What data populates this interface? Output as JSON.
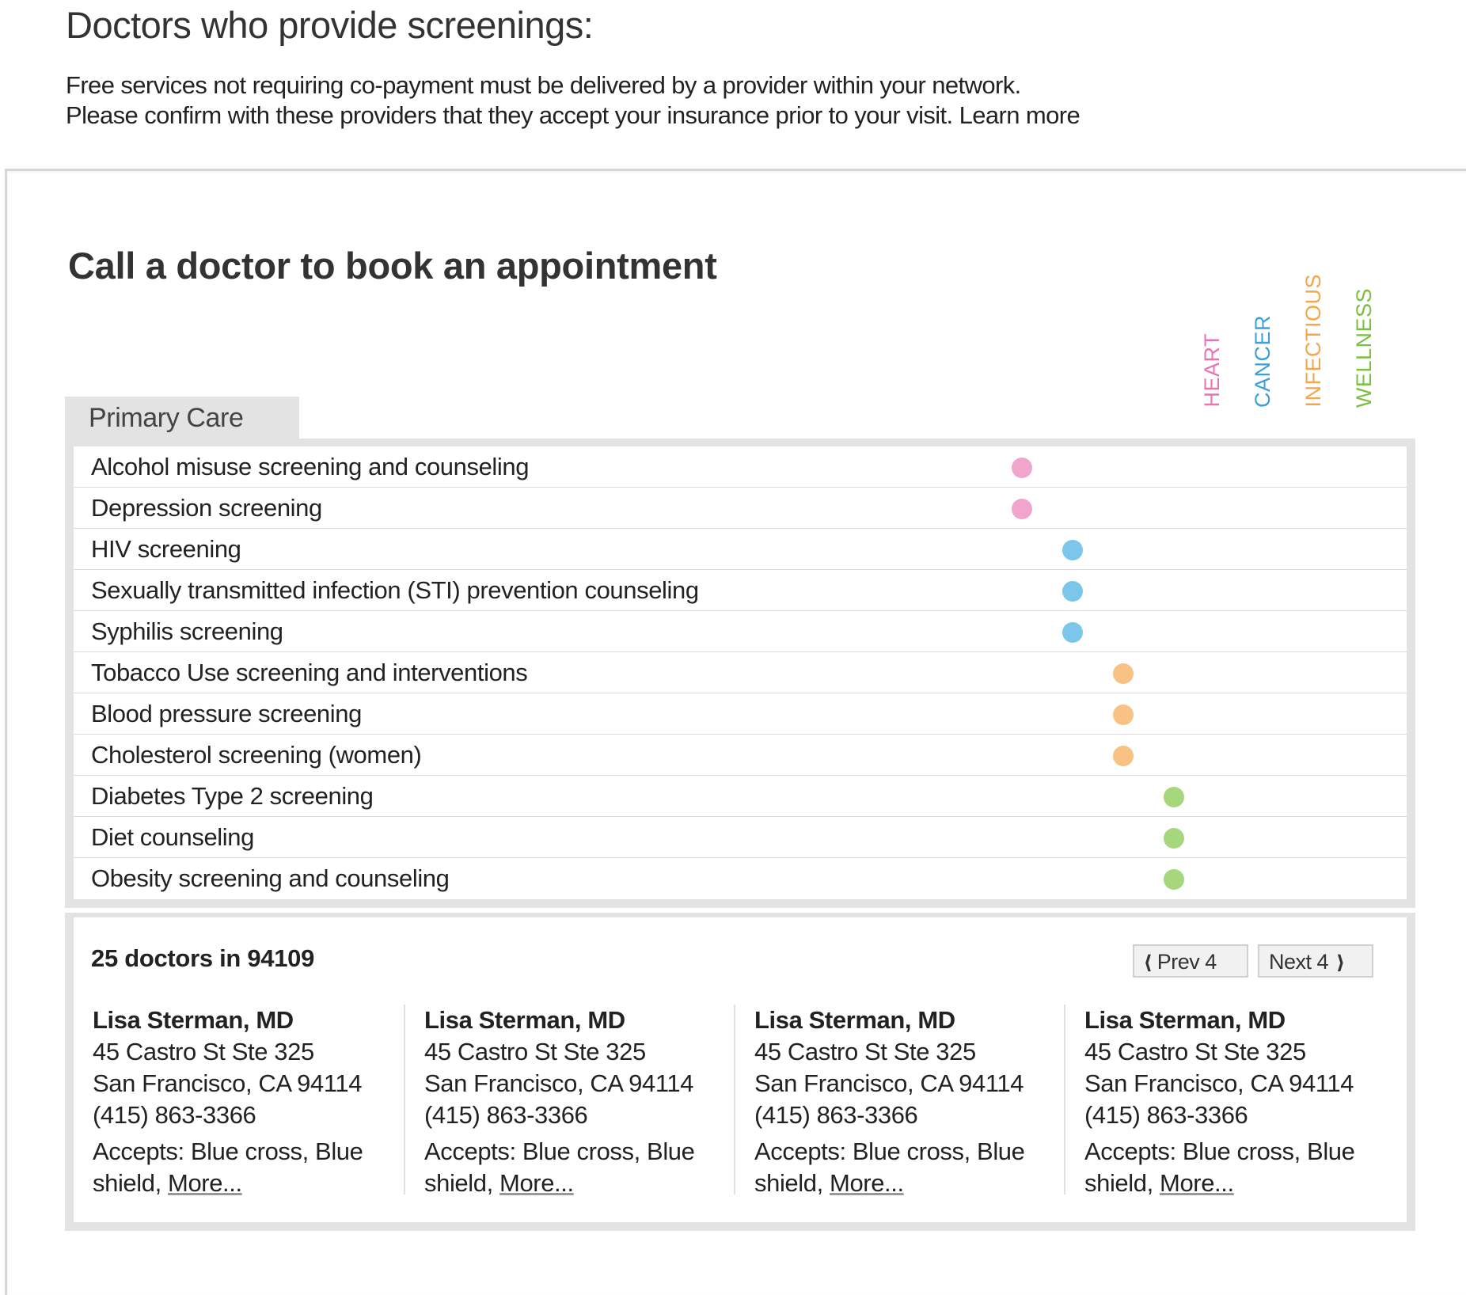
{
  "header": {
    "title": "Doctors who provide screenings:",
    "intro_line1": "Free services not requiring co-payment must be delivered by a provider within your network.",
    "intro_line2": "Please confirm with these providers that they accept your insurance prior to your visit.",
    "learn_more": "Learn more"
  },
  "card": {
    "title": "Call a doctor to book an appointment"
  },
  "categories": [
    {
      "label": "HEART",
      "color": "#e874b4"
    },
    {
      "label": "CANCER",
      "color": "#3b9fdb"
    },
    {
      "label": "INFECTIOUS",
      "color": "#f4a64a"
    },
    {
      "label": "WELLNESS",
      "color": "#7bc043"
    }
  ],
  "tab": {
    "label": "Primary Care"
  },
  "dot_colors": {
    "heart": "#f0a5cc",
    "cancer": "#7cc6ec",
    "infectious": "#f7c283",
    "wellness": "#a6d77d"
  },
  "services": [
    {
      "label": "Alcohol misuse screening and counseling",
      "category": "heart"
    },
    {
      "label": "Depression screening",
      "category": "heart"
    },
    {
      "label": "HIV screening",
      "category": "cancer"
    },
    {
      "label": "Sexually transmitted infection (STI) prevention counseling",
      "category": "cancer"
    },
    {
      "label": "Syphilis screening",
      "category": "cancer"
    },
    {
      "label": "Tobacco Use screening and interventions",
      "category": "infectious"
    },
    {
      "label": "Blood pressure screening",
      "category": "infectious"
    },
    {
      "label": "Cholesterol screening (women)",
      "category": "infectious"
    },
    {
      "label": "Diabetes Type 2 screening",
      "category": "wellness"
    },
    {
      "label": "Diet counseling",
      "category": "wellness"
    },
    {
      "label": "Obesity screening and counseling",
      "category": "wellness"
    }
  ],
  "doctors_section": {
    "count_text": "25 doctors in 94109",
    "prev_label": "Prev 4",
    "next_label": "Next 4"
  },
  "doctors": [
    {
      "name": "Lisa Sterman, MD",
      "address1": "45 Castro St Ste 325",
      "address2": "San Francisco, CA 94114",
      "phone": "(415) 863-3366",
      "accepts": "Accepts: Blue cross, Blue shield,",
      "more": "More..."
    },
    {
      "name": "Lisa Sterman, MD",
      "address1": "45 Castro St Ste 325",
      "address2": "San Francisco, CA 94114",
      "phone": "(415) 863-3366",
      "accepts": "Accepts: Blue cross, Blue shield,",
      "more": "More..."
    },
    {
      "name": "Lisa Sterman, MD",
      "address1": "45 Castro St Ste 325",
      "address2": "San Francisco, CA 94114",
      "phone": "(415) 863-3366",
      "accepts": "Accepts: Blue cross, Blue shield,",
      "more": "More..."
    },
    {
      "name": "Lisa Sterman, MD",
      "address1": "45 Castro St Ste 325",
      "address2": "San Francisco, CA 94114",
      "phone": "(415) 863-3366",
      "accepts": "Accepts: Blue cross, Blue shield,",
      "more": "More..."
    }
  ]
}
